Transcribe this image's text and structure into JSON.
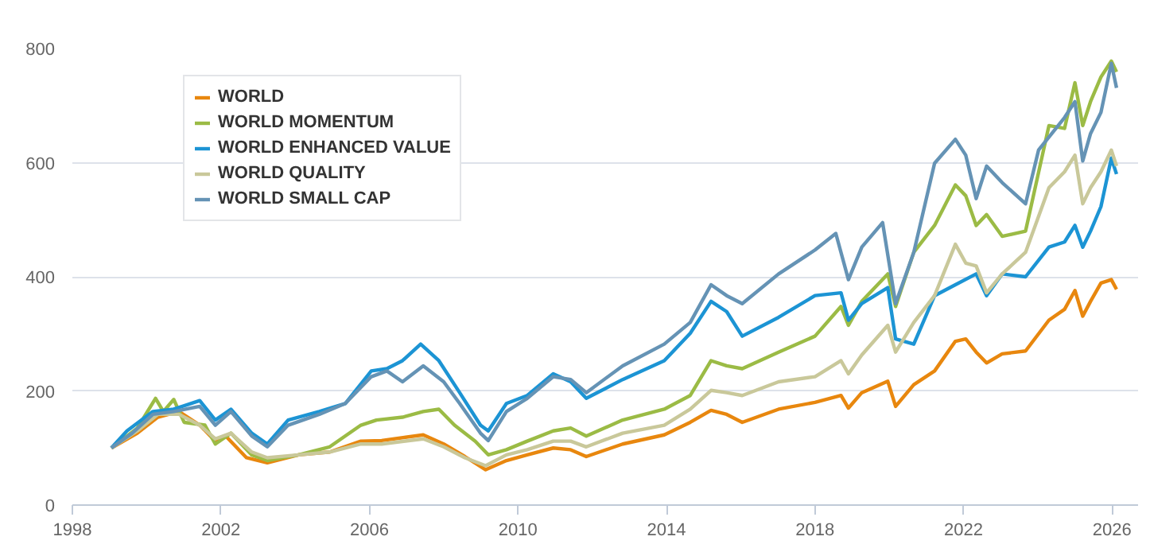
{
  "chart_data": {
    "type": "line",
    "xlim": [
      1998,
      2026.7
    ],
    "xticks": [
      1998,
      2002,
      2006,
      2010,
      2014,
      2018,
      2022,
      2026
    ],
    "ylim": [
      0,
      800
    ],
    "yticks": [
      0,
      200,
      400,
      600,
      800
    ],
    "grid": "y",
    "legend": "top left",
    "marker": "none",
    "line_style": "solid",
    "series": [
      {
        "name": "WORLD",
        "color": "#e8870e",
        "x": [
          1999.05,
          1999.75,
          2000.3,
          2000.87,
          2001.43,
          2001.85,
          2002.13,
          2002.69,
          2003.25,
          2004.09,
          2004.93,
          2005.77,
          2006.33,
          2007.45,
          2008.0,
          2008.57,
          2009.13,
          2009.69,
          2010.25,
          2010.95,
          2011.42,
          2011.84,
          2012.82,
          2013.94,
          2014.64,
          2015.2,
          2015.62,
          2016.04,
          2017.02,
          2018.0,
          2018.7,
          2018.9,
          2019.26,
          2019.96,
          2020.17,
          2020.66,
          2021.22,
          2021.78,
          2022.06,
          2022.34,
          2022.62,
          2023.04,
          2023.67,
          2024.3,
          2024.72,
          2025.0,
          2025.21,
          2025.42,
          2025.7,
          2025.98,
          2026.12
        ],
        "values": [
          100,
          126,
          154,
          164,
          140,
          112,
          121,
          83,
          74,
          88,
          93,
          112,
          113,
          123,
          107,
          85,
          62,
          78,
          88,
          100,
          97,
          85,
          107,
          123,
          145,
          166,
          159,
          145,
          168,
          180,
          192,
          170,
          197,
          217,
          173,
          211,
          235,
          287,
          291,
          268,
          249,
          265,
          270,
          324,
          343,
          376,
          331,
          357,
          389,
          395,
          378
        ]
      },
      {
        "name": "WORLD MOMENTUM",
        "color": "#9bbb45",
        "x": [
          1999.05,
          1999.75,
          2000.24,
          2000.45,
          2000.73,
          2001.01,
          2001.57,
          2001.85,
          2002.27,
          2002.83,
          2003.25,
          2004.09,
          2004.93,
          2005.77,
          2006.19,
          2006.89,
          2007.45,
          2007.87,
          2008.29,
          2008.85,
          2009.2,
          2009.69,
          2010.25,
          2010.95,
          2011.42,
          2011.84,
          2012.82,
          2013.94,
          2014.64,
          2015.2,
          2015.62,
          2016.04,
          2017.02,
          2018.0,
          2018.7,
          2018.9,
          2019.26,
          2019.96,
          2020.17,
          2020.66,
          2021.22,
          2021.78,
          2022.06,
          2022.34,
          2022.62,
          2023.04,
          2023.67,
          2024.3,
          2024.72,
          2025.0,
          2025.21,
          2025.42,
          2025.7,
          2025.98,
          2026.12
        ],
        "values": [
          100,
          135,
          187,
          164,
          185,
          145,
          140,
          107,
          126,
          88,
          78,
          88,
          102,
          140,
          149,
          154,
          164,
          168,
          140,
          112,
          88,
          97,
          112,
          130,
          135,
          121,
          149,
          168,
          192,
          253,
          244,
          239,
          268,
          296,
          348,
          315,
          357,
          405,
          348,
          443,
          490,
          561,
          542,
          490,
          509,
          471,
          480,
          665,
          660,
          740,
          665,
          707,
          750,
          778,
          759
        ]
      },
      {
        "name": "WORLD ENHANCED VALUE",
        "color": "#1c94d4",
        "x": [
          1999.05,
          1999.47,
          2000.17,
          2000.73,
          2001.43,
          2001.85,
          2002.27,
          2002.83,
          2003.25,
          2003.81,
          2004.65,
          2005.35,
          2006.05,
          2006.47,
          2006.89,
          2007.38,
          2007.87,
          2008.43,
          2008.99,
          2009.2,
          2009.69,
          2010.25,
          2010.95,
          2011.42,
          2011.84,
          2012.82,
          2013.94,
          2014.64,
          2015.2,
          2015.62,
          2016.04,
          2017.02,
          2018.0,
          2018.7,
          2018.9,
          2019.26,
          2019.96,
          2020.17,
          2020.66,
          2021.22,
          2021.78,
          2022.34,
          2022.62,
          2023.04,
          2023.67,
          2024.3,
          2024.72,
          2025.0,
          2025.21,
          2025.42,
          2025.7,
          2025.98,
          2026.12
        ],
        "values": [
          100,
          130,
          164,
          168,
          183,
          149,
          168,
          126,
          107,
          149,
          164,
          178,
          235,
          239,
          253,
          282,
          253,
          197,
          140,
          130,
          178,
          192,
          230,
          216,
          187,
          220,
          253,
          301,
          357,
          339,
          296,
          329,
          367,
          372,
          324,
          353,
          381,
          291,
          282,
          367,
          386,
          405,
          367,
          405,
          400,
          452,
          461,
          490,
          452,
          480,
          523,
          608,
          580
        ]
      },
      {
        "name": "WORLD QUALITY",
        "color": "#c9c89a",
        "x": [
          1999.05,
          1999.75,
          2000.3,
          2000.87,
          2001.43,
          2001.85,
          2002.27,
          2002.83,
          2003.25,
          2004.09,
          2004.93,
          2005.77,
          2006.33,
          2007.45,
          2008.0,
          2008.57,
          2009.13,
          2009.69,
          2010.25,
          2010.95,
          2011.42,
          2011.84,
          2012.82,
          2013.94,
          2014.64,
          2015.2,
          2015.62,
          2016.04,
          2017.02,
          2018.0,
          2018.7,
          2018.9,
          2019.26,
          2019.96,
          2020.17,
          2020.66,
          2021.22,
          2021.78,
          2022.06,
          2022.34,
          2022.62,
          2023.04,
          2023.67,
          2024.3,
          2024.72,
          2025.0,
          2025.21,
          2025.42,
          2025.7,
          2025.98,
          2026.12
        ],
        "values": [
          100,
          130,
          159,
          159,
          140,
          116,
          126,
          93,
          83,
          88,
          93,
          107,
          107,
          116,
          102,
          83,
          69,
          88,
          97,
          112,
          112,
          102,
          126,
          140,
          168,
          201,
          197,
          192,
          216,
          225,
          253,
          230,
          263,
          315,
          268,
          320,
          367,
          457,
          424,
          419,
          372,
          405,
          443,
          556,
          584,
          613,
          528,
          556,
          584,
          622,
          594
        ]
      },
      {
        "name": "WORLD SMALL CAP",
        "color": "#6593b5",
        "x": [
          1999.05,
          1999.61,
          2000.17,
          2000.73,
          2001.43,
          2001.85,
          2002.27,
          2002.83,
          2003.25,
          2003.81,
          2004.65,
          2005.35,
          2006.05,
          2006.47,
          2006.89,
          2007.45,
          2008.0,
          2008.43,
          2008.99,
          2009.2,
          2009.69,
          2010.25,
          2010.95,
          2011.42,
          2011.84,
          2012.82,
          2013.94,
          2014.64,
          2015.2,
          2015.62,
          2016.04,
          2017.02,
          2018.0,
          2018.56,
          2018.9,
          2019.26,
          2019.82,
          2020.17,
          2020.66,
          2021.22,
          2021.78,
          2022.06,
          2022.34,
          2022.62,
          2023.04,
          2023.67,
          2024.02,
          2024.72,
          2025.0,
          2025.21,
          2025.42,
          2025.7,
          2025.98,
          2026.12
        ],
        "values": [
          100,
          126,
          159,
          164,
          173,
          140,
          164,
          121,
          102,
          140,
          159,
          178,
          225,
          235,
          216,
          244,
          216,
          178,
          126,
          113,
          164,
          187,
          225,
          220,
          197,
          244,
          282,
          320,
          386,
          367,
          353,
          405,
          447,
          476,
          395,
          452,
          495,
          353,
          443,
          599,
          641,
          613,
          537,
          594,
          565,
          528,
          622,
          679,
          707,
          603,
          651,
          688,
          774,
          731
        ]
      }
    ]
  }
}
